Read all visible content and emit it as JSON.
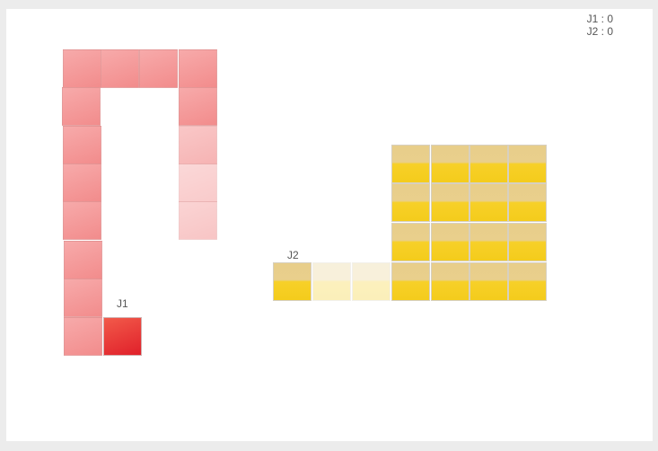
{
  "scoreboard": {
    "j1": "J1 : 0",
    "j2": "J2 : 0"
  },
  "players": {
    "j1": {
      "label": "J1",
      "color": "#e0202a"
    },
    "j2": {
      "label": "J2",
      "color": "#f4cc1c"
    }
  }
}
